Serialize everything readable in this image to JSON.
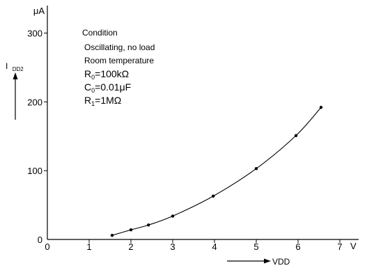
{
  "chart_data": {
    "type": "scatter",
    "x": [
      1.55,
      2.0,
      2.42,
      3.0,
      3.97,
      5.0,
      5.95,
      6.55
    ],
    "y": [
      6,
      14,
      21,
      34,
      63,
      103,
      151,
      192
    ],
    "xlim": [
      0,
      7.45
    ],
    "ylim": [
      0,
      340
    ],
    "x_ticks": [
      "0",
      "1",
      "2",
      "3",
      "4",
      "5",
      "6",
      "7"
    ],
    "y_ticks": [
      "0",
      "100",
      "200",
      "300"
    ],
    "x_unit": "V",
    "y_unit": "μA",
    "xlabel": "VDD",
    "ylabel_main": "I",
    "ylabel_sub": "DD2",
    "curve": "smooth line through points",
    "grid": false
  },
  "condition": {
    "title": "Condition",
    "line1": "Oscillating, no load",
    "line2": "Room temperature",
    "r0_main": "R",
    "r0_sub": "0",
    "r0_val": "=100kΩ",
    "c0_main": "C",
    "c0_sub": "0",
    "c0_val": "=0.01μF",
    "r1_main": "R",
    "r1_sub": "1",
    "r1_val": "=1MΩ"
  },
  "colors": {
    "line": "#000000",
    "background": "#ffffff"
  }
}
